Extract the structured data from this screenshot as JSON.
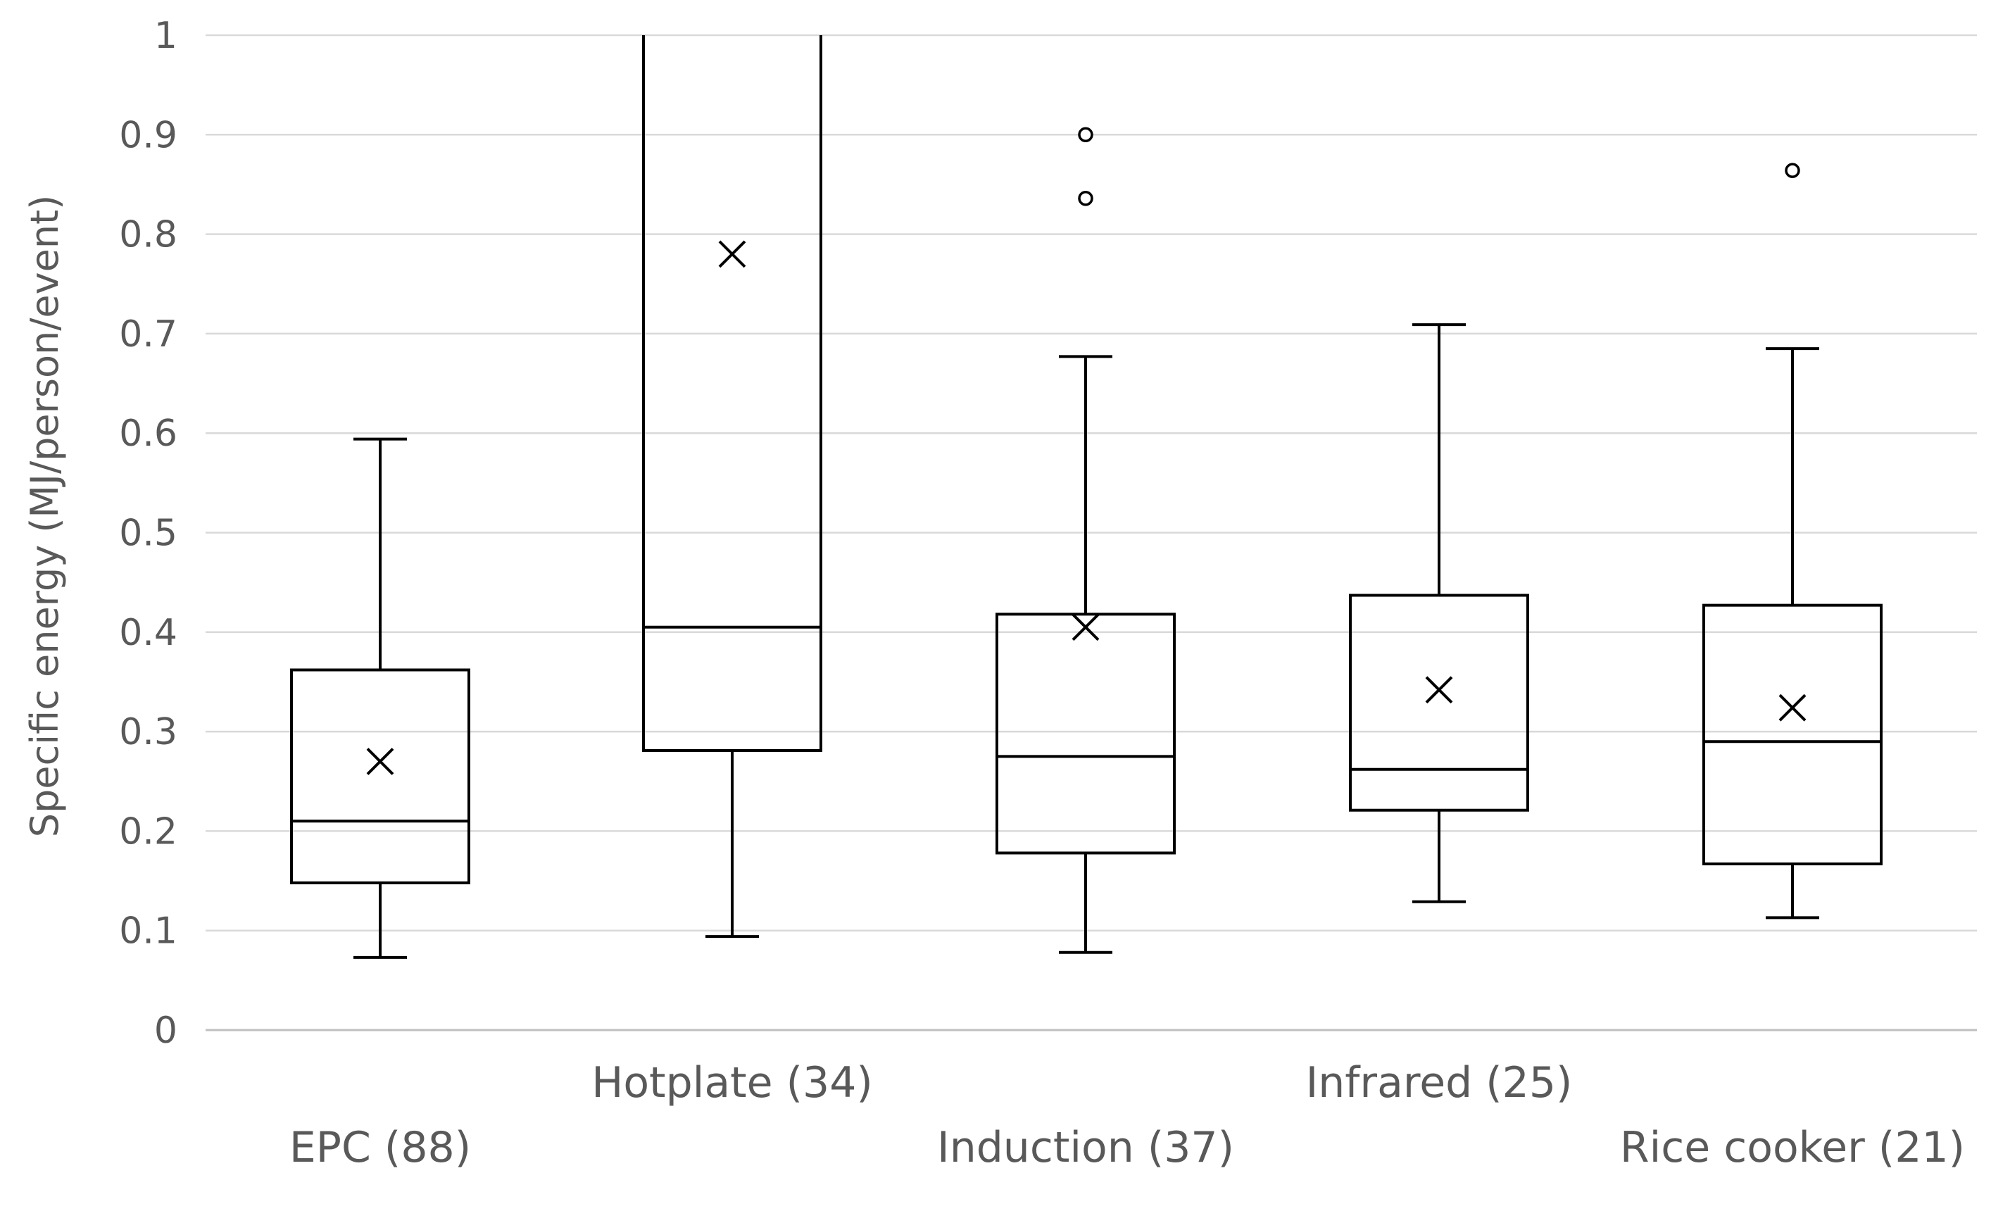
{
  "chart_data": {
    "type": "box",
    "title": "",
    "xlabel": "",
    "ylabel": "Specific energy (MJ/person/event)",
    "ylim": [
      0,
      1
    ],
    "yticks": [
      "0",
      "0.1",
      "0.2",
      "0.3",
      "0.4",
      "0.5",
      "0.6",
      "0.7",
      "0.8",
      "0.9",
      "1"
    ],
    "grid": true,
    "categories": [
      "EPC (88)",
      "Hotplate (34)",
      "Induction (37)",
      "Infrared (25)",
      "Rice cooker (21)"
    ],
    "boxes": [
      {
        "category": "EPC (88)",
        "whisker_low": 0.073,
        "q1": 0.148,
        "median": 0.21,
        "q3": 0.362,
        "whisker_high": 0.594,
        "mean": 0.27,
        "outliers": []
      },
      {
        "category": "Hotplate (34)",
        "whisker_low": 0.094,
        "q1": 0.281,
        "median": 0.405,
        "q3": 1.0,
        "whisker_high": 1.0,
        "mean": 0.78,
        "outliers": []
      },
      {
        "category": "Induction (37)",
        "whisker_low": 0.078,
        "q1": 0.178,
        "median": 0.275,
        "q3": 0.418,
        "whisker_high": 0.677,
        "mean": 0.405,
        "outliers": [
          0.836,
          0.9
        ]
      },
      {
        "category": "Infrared (25)",
        "whisker_low": 0.129,
        "q1": 0.221,
        "median": 0.262,
        "q3": 0.437,
        "whisker_high": 0.709,
        "mean": 0.342,
        "outliers": []
      },
      {
        "category": "Rice cooker (21)",
        "whisker_low": 0.113,
        "q1": 0.167,
        "median": 0.29,
        "q3": 0.427,
        "whisker_high": 0.685,
        "mean": 0.324,
        "outliers": [
          0.864
        ]
      }
    ],
    "colors": {
      "grid": "#d9d9d9",
      "axis": "#bfbfbf",
      "box": "#000000",
      "text": "#595959"
    }
  }
}
